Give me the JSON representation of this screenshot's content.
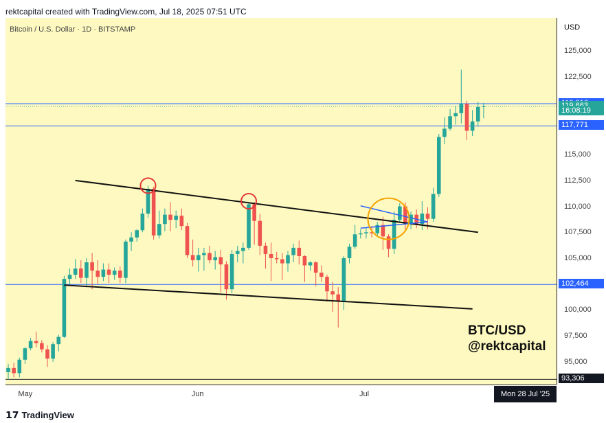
{
  "header": {
    "title": "rektcapital created with TradingView.com, Jul 18, 2025 07:51 UTC"
  },
  "chart": {
    "symbol": "Bitcoin / U.S. Dollar · 1D · BITSTAMP",
    "watermark_line1": "BTC/USD",
    "watermark_line2": "@rektcapital",
    "currency": "USD",
    "date_label": "Mon 28 Jul '25"
  },
  "footer": {
    "logo_text": "TradingView"
  },
  "colors": {
    "up": "#26a69a",
    "down": "#ef5350",
    "background": "#fdf9c0",
    "hline": "#2962ff",
    "circle_red": "#e53935",
    "circle_orange": "#f5a300"
  },
  "price_labels": [
    {
      "value": "119,916",
      "price": 119916,
      "color": "#2962ff"
    },
    {
      "value": "119,663",
      "price": 119663,
      "color": "#26a69a"
    },
    {
      "value": "16:08:19",
      "price": 119200,
      "color": "#26a69a"
    },
    {
      "value": "117,771",
      "price": 117771,
      "color": "#2962ff"
    },
    {
      "value": "102,464",
      "price": 102464,
      "color": "#2962ff"
    },
    {
      "value": "93,306",
      "price": 93306,
      "color": "#131722"
    }
  ],
  "chart_data": {
    "type": "candlestick",
    "ylim": [
      92800,
      128200
    ],
    "yticks": [
      {
        "value": 125000,
        "label": "125,000"
      },
      {
        "value": 122500,
        "label": "122,500"
      },
      {
        "value": 115000,
        "label": "115,000"
      },
      {
        "value": 112500,
        "label": "112,500"
      },
      {
        "value": 110000,
        "label": "110,000"
      },
      {
        "value": 107500,
        "label": "107,500"
      },
      {
        "value": 105000,
        "label": "105,000"
      },
      {
        "value": 100000,
        "label": "100,000"
      },
      {
        "value": 97500,
        "label": "97,500"
      },
      {
        "value": 95000,
        "label": "95,000"
      }
    ],
    "xticks": [
      {
        "label": "May",
        "index": 3
      },
      {
        "label": "Jun",
        "index": 34
      },
      {
        "label": "Jul",
        "index": 64
      }
    ],
    "hlines": [
      119916,
      117771,
      102464
    ],
    "trendlines": [
      {
        "from": [
          12,
          112500
        ],
        "to": [
          84,
          107500
        ],
        "color": "#111"
      },
      {
        "from": [
          10,
          102400
        ],
        "to": [
          83,
          100100
        ],
        "color": "#111"
      }
    ],
    "pennant": {
      "upper": [
        [
          63,
          110050
        ],
        [
          75,
          108500
        ]
      ],
      "lower": [
        [
          63,
          107900
        ],
        [
          75,
          108500
        ]
      ]
    },
    "markers": [
      {
        "index": 25,
        "price": 112000,
        "type": "circle",
        "color": "#e53935"
      },
      {
        "index": 43,
        "price": 110500,
        "type": "circle",
        "color": "#e53935"
      },
      {
        "index": 68,
        "price": 108800,
        "type": "circle",
        "color": "#f5a300"
      }
    ],
    "candles": [
      [
        94000,
        94800,
        93300,
        94400
      ],
      [
        94400,
        94900,
        93500,
        93900
      ],
      [
        93900,
        95400,
        93500,
        95200
      ],
      [
        95200,
        96400,
        94800,
        96300
      ],
      [
        96300,
        97300,
        96100,
        97000
      ],
      [
        97000,
        97900,
        96400,
        96800
      ],
      [
        96800,
        97100,
        95900,
        96200
      ],
      [
        96200,
        96600,
        94500,
        95300
      ],
      [
        95300,
        96900,
        95000,
        96700
      ],
      [
        96700,
        97600,
        96000,
        97400
      ],
      [
        97400,
        103300,
        97300,
        103000
      ],
      [
        103000,
        104000,
        102500,
        103400
      ],
      [
        103400,
        104900,
        103000,
        104000
      ],
      [
        104000,
        104800,
        102600,
        103100
      ],
      [
        103100,
        105000,
        102300,
        104600
      ],
      [
        104600,
        105500,
        102000,
        103800
      ],
      [
        103800,
        104800,
        102500,
        103200
      ],
      [
        103200,
        104500,
        102800,
        103900
      ],
      [
        103900,
        104500,
        102600,
        103400
      ],
      [
        103400,
        104100,
        102900,
        103800
      ],
      [
        103800,
        104200,
        102600,
        103100
      ],
      [
        103100,
        106800,
        102600,
        106600
      ],
      [
        106600,
        107500,
        105700,
        107000
      ],
      [
        107000,
        107800,
        106600,
        107700
      ],
      [
        107700,
        109800,
        107500,
        109300
      ],
      [
        109300,
        112000,
        108900,
        111700
      ],
      [
        111700,
        111900,
        106800,
        107200
      ],
      [
        107200,
        109600,
        106900,
        108300
      ],
      [
        108300,
        109800,
        107600,
        109200
      ],
      [
        109200,
        110400,
        107600,
        108700
      ],
      [
        108700,
        109600,
        107900,
        109100
      ],
      [
        109100,
        109800,
        107700,
        108100
      ],
      [
        108100,
        108400,
        105000,
        105300
      ],
      [
        105300,
        106800,
        104200,
        104800
      ],
      [
        104800,
        106000,
        103700,
        105300
      ],
      [
        105300,
        106000,
        103800,
        105500
      ],
      [
        105500,
        106200,
        104500,
        104800
      ],
      [
        104800,
        105700,
        103900,
        105100
      ],
      [
        105100,
        105800,
        101700,
        104400
      ],
      [
        104400,
        104700,
        101000,
        102000
      ],
      [
        102000,
        105800,
        101600,
        105400
      ],
      [
        105400,
        106200,
        104600,
        105700
      ],
      [
        105700,
        106500,
        104500,
        106000
      ],
      [
        106000,
        110300,
        105800,
        110200
      ],
      [
        110200,
        110400,
        106300,
        108600
      ],
      [
        108600,
        109300,
        105300,
        106200
      ],
      [
        106200,
        106500,
        104000,
        105400
      ],
      [
        105400,
        106500,
        102800,
        105000
      ],
      [
        105000,
        105600,
        104500,
        104900
      ],
      [
        104900,
        105500,
        102900,
        104500
      ],
      [
        104500,
        105700,
        103700,
        105300
      ],
      [
        105300,
        106400,
        104600,
        106000
      ],
      [
        106000,
        106700,
        104400,
        105200
      ],
      [
        105200,
        105300,
        102700,
        104300
      ],
      [
        104300,
        104700,
        103800,
        104600
      ],
      [
        104600,
        104700,
        102300,
        103600
      ],
      [
        103600,
        104300,
        102700,
        103200
      ],
      [
        103200,
        103400,
        100800,
        101800
      ],
      [
        101800,
        102700,
        99800,
        101500
      ],
      [
        101500,
        102200,
        98300,
        100800
      ],
      [
        100800,
        105200,
        100000,
        105000
      ],
      [
        105000,
        106400,
        104500,
        106100
      ],
      [
        106100,
        108200,
        105900,
        107300
      ],
      [
        107300,
        107800,
        106900,
        107400
      ],
      [
        107400,
        107900,
        106900,
        107500
      ],
      [
        107500,
        108100,
        107000,
        107400
      ],
      [
        107400,
        108500,
        107100,
        108200
      ],
      [
        108200,
        109000,
        105800,
        107100
      ],
      [
        107100,
        107300,
        105100,
        105900
      ],
      [
        105900,
        109500,
        105400,
        108700
      ],
      [
        108700,
        110300,
        108500,
        110000
      ],
      [
        110000,
        110400,
        107600,
        108300
      ],
      [
        108300,
        109500,
        107800,
        109200
      ],
      [
        109200,
        109700,
        107900,
        108300
      ],
      [
        108300,
        110500,
        107700,
        109300
      ],
      [
        109300,
        109900,
        107800,
        108800
      ],
      [
        108800,
        111800,
        108500,
        111200
      ],
      [
        111200,
        117000,
        110900,
        116700
      ],
      [
        116700,
        118600,
        116000,
        117500
      ],
      [
        117500,
        119400,
        117300,
        118700
      ],
      [
        118700,
        119700,
        117900,
        119000
      ],
      [
        119000,
        123200,
        118000,
        119900
      ],
      [
        119900,
        120200,
        116400,
        117300
      ],
      [
        117300,
        119300,
        116800,
        118200
      ],
      [
        118200,
        120100,
        117700,
        119600
      ],
      [
        119600,
        120000,
        118500,
        119663
      ]
    ]
  }
}
